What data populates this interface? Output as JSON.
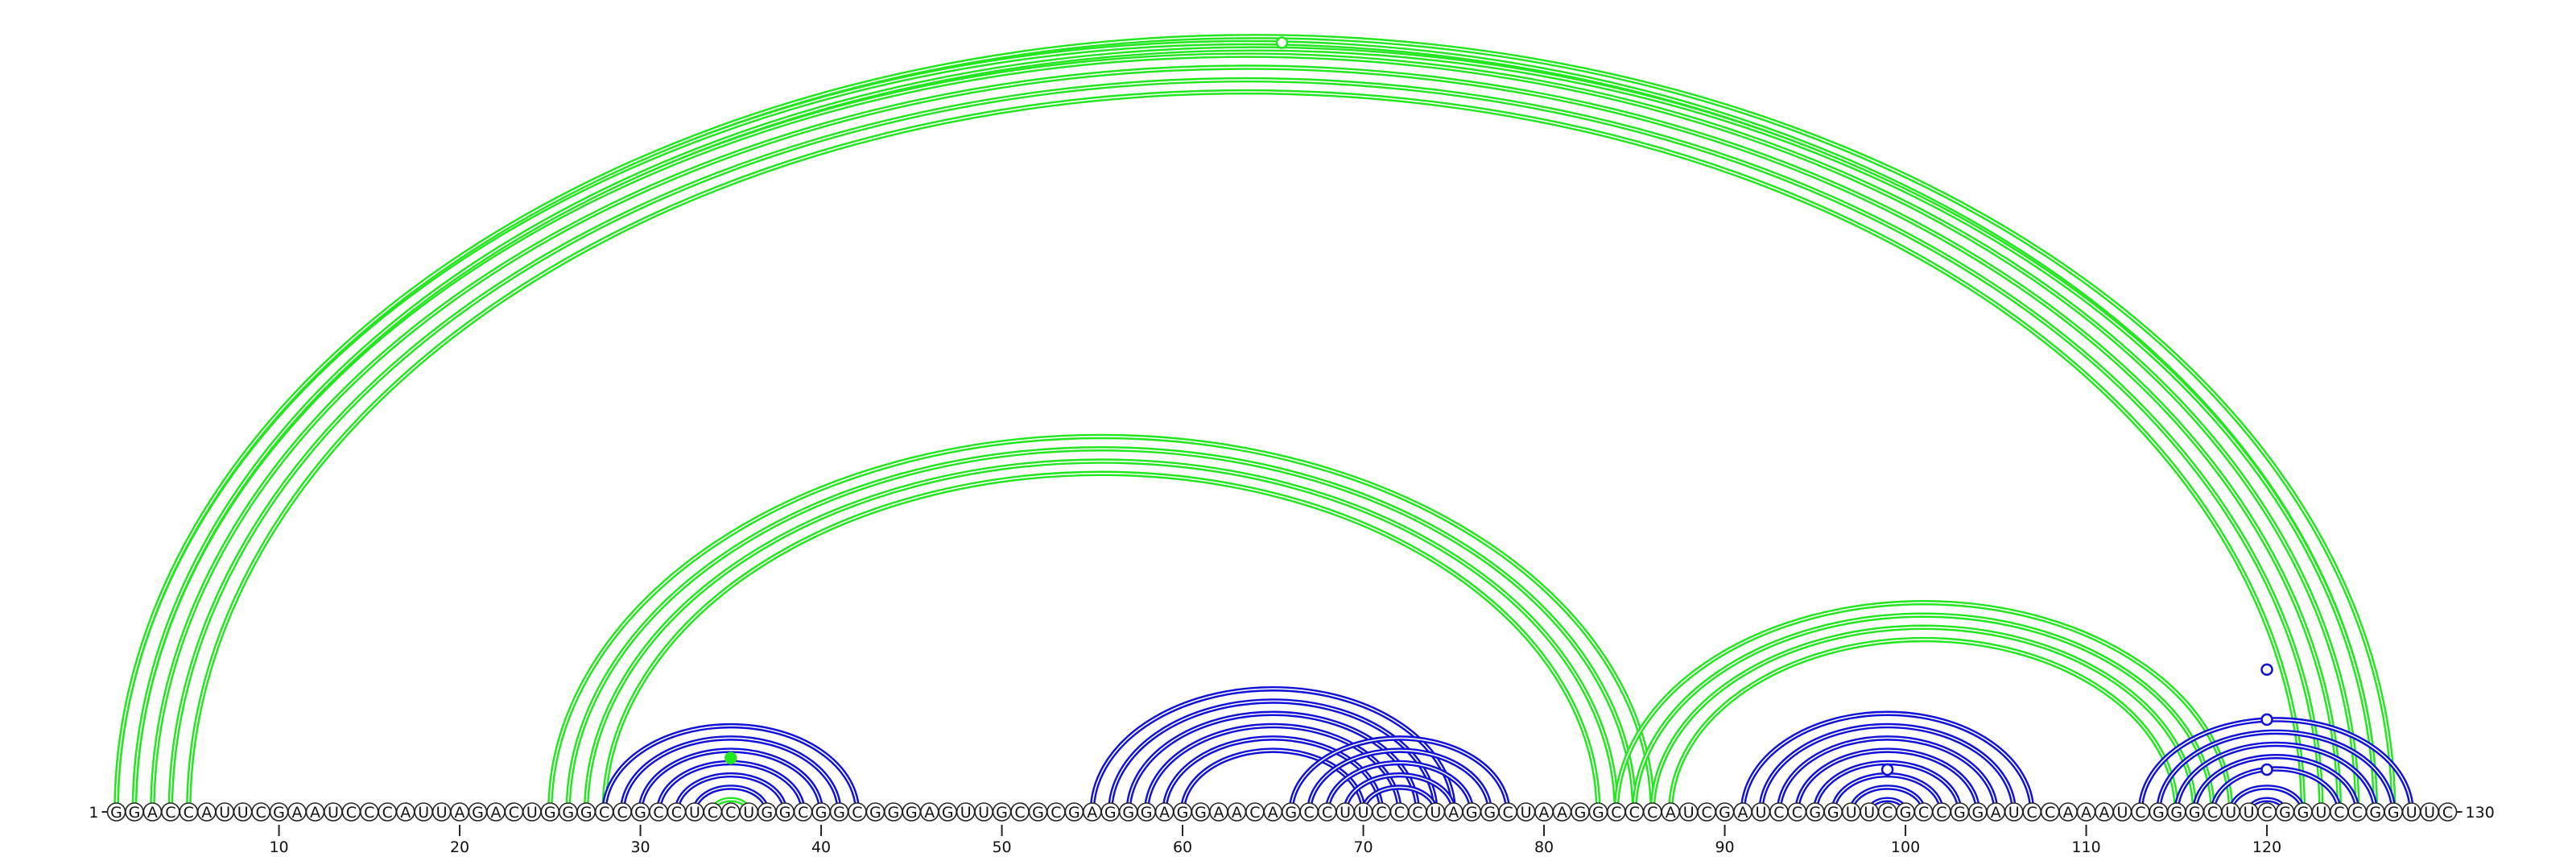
{
  "diagram": {
    "sequence": "GGACCAUUCGAAUCCCAUUAGACUGGGCCGCCUCCUGGCGGCGGGAGUUGCGCGAGGGAGGAACAGCCUUCCCUAGGCUAAGGCCCAUCGAUCCGGUUCGCCGGAUCCAAAUCGGGCUUCGGUCCGGUUC",
    "start_label": "1",
    "end_label": "130",
    "tick_labels": [
      "10",
      "20",
      "30",
      "40",
      "50",
      "60",
      "70",
      "80",
      "90",
      "100",
      "110",
      "120"
    ],
    "colors": {
      "long_range": "#22e61e",
      "local": "#1010d8",
      "backbone": "#222222"
    },
    "helices": [
      {
        "color": "long_range",
        "pairs": [
          [
            1,
            126
          ],
          [
            2,
            125
          ],
          [
            3,
            124
          ],
          [
            4,
            123
          ],
          [
            5,
            122
          ]
        ]
      },
      {
        "color": "long_range",
        "pairs": [
          [
            1,
            127
          ],
          [
            2,
            126
          ]
        ]
      },
      {
        "color": "long_range",
        "pairs": [
          [
            25,
            86
          ],
          [
            26,
            85
          ],
          [
            27,
            84
          ],
          [
            28,
            83
          ]
        ]
      },
      {
        "color": "long_range",
        "pairs": [
          [
            84,
            118
          ],
          [
            85,
            117
          ],
          [
            86,
            116
          ],
          [
            87,
            115
          ]
        ]
      },
      {
        "color": "long_range",
        "pairs": [
          [
            34,
            36
          ]
        ]
      },
      {
        "color": "local",
        "pairs": [
          [
            28,
            42
          ],
          [
            29,
            41
          ],
          [
            30,
            40
          ],
          [
            31,
            39
          ],
          [
            32,
            38
          ],
          [
            33,
            37
          ]
        ]
      },
      {
        "color": "local",
        "pairs": [
          [
            55,
            75
          ],
          [
            56,
            74
          ],
          [
            57,
            73
          ],
          [
            58,
            72
          ],
          [
            59,
            71
          ],
          [
            60,
            70
          ]
        ]
      },
      {
        "color": "local",
        "pairs": [
          [
            66,
            78
          ],
          [
            67,
            77
          ],
          [
            68,
            76
          ],
          [
            69,
            75
          ],
          [
            70,
            74
          ]
        ]
      },
      {
        "color": "local",
        "pairs": [
          [
            91,
            107
          ],
          [
            92,
            106
          ],
          [
            93,
            105
          ],
          [
            94,
            104
          ],
          [
            95,
            103
          ],
          [
            96,
            102
          ],
          [
            97,
            101
          ],
          [
            98,
            100
          ]
        ]
      },
      {
        "color": "local",
        "pairs": [
          [
            113,
            128
          ],
          [
            114,
            127
          ],
          [
            115,
            126
          ],
          [
            116,
            125
          ],
          [
            117,
            124
          ],
          [
            118,
            122
          ],
          [
            119,
            121
          ]
        ]
      }
    ],
    "markers": [
      {
        "pos": 65.5,
        "height": 1.0,
        "style": "open",
        "color": "long_range"
      },
      {
        "pos": 35,
        "height": 0.07,
        "style": "filled",
        "color": "long_range"
      },
      {
        "pos": 99,
        "height": 0.055,
        "style": "open",
        "color": "local"
      },
      {
        "pos": 120,
        "height": 0.185,
        "style": "open",
        "color": "local"
      },
      {
        "pos": 120,
        "height": 0.12,
        "style": "open",
        "color": "local"
      },
      {
        "pos": 120,
        "height": 0.055,
        "style": "open",
        "color": "local"
      }
    ]
  }
}
